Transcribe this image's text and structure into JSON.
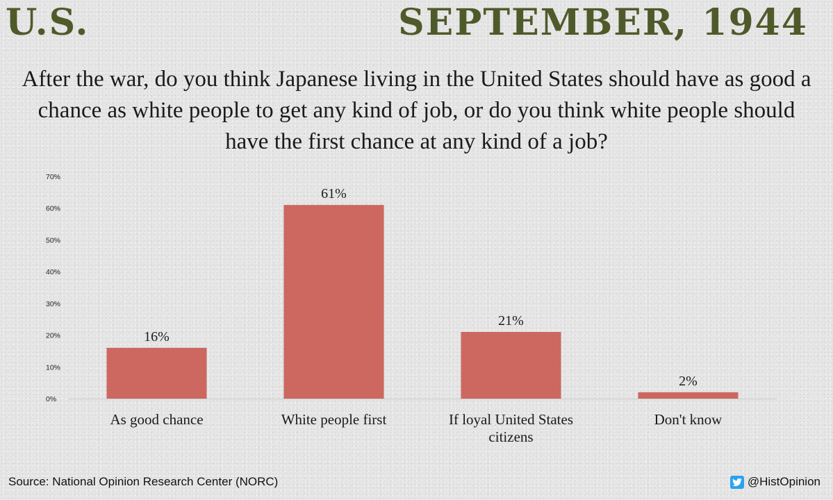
{
  "header": {
    "country": "U.S.",
    "date": "SEPTEMBER, 1944"
  },
  "question": "After the war, do you think Japanese living in the United States should have as good a chance as white people to get any kind of job, or do you think white people should have the first chance at any kind of a job?",
  "chart_data": {
    "type": "bar",
    "categories": [
      [
        "As good chance"
      ],
      [
        "White people first"
      ],
      [
        "If loyal United States",
        "citizens"
      ],
      [
        "Don't know"
      ]
    ],
    "values": [
      16,
      61,
      21,
      2
    ],
    "value_labels": [
      "16%",
      "61%",
      "21%",
      "2%"
    ],
    "ylim": [
      0,
      70
    ],
    "yticks": [
      0,
      10,
      20,
      30,
      40,
      50,
      60,
      70
    ],
    "ytick_labels": [
      "0%",
      "10%",
      "20%",
      "30%",
      "40%",
      "50%",
      "60%",
      "70%"
    ],
    "bar_color": "#cc6860",
    "grid": false,
    "legend": "none"
  },
  "footer": {
    "source": "Source: National Opinion Research Center (NORC)",
    "handle": "@HistOpinion"
  },
  "icons": {
    "social": "twitter-icon"
  },
  "colors": {
    "title": "#4f5a2a",
    "bar": "#cc6860",
    "twitter": "#2aa3ef"
  }
}
